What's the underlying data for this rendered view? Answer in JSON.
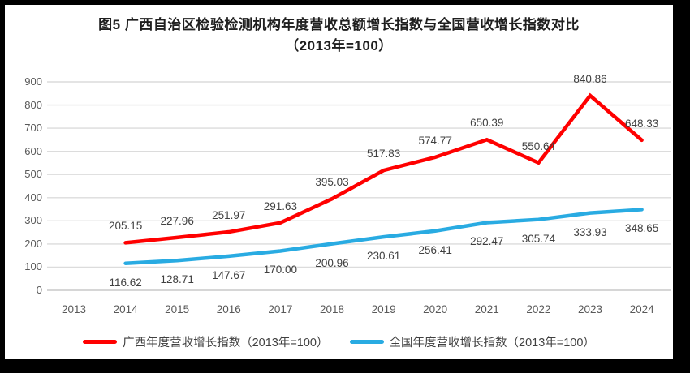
{
  "frame": {
    "border_color": "#000000",
    "background": "#ffffff"
  },
  "chart_data": {
    "type": "line",
    "title": "图5  广西自治区检验检测机构年度营收总额增长指数与全国营收增长指数对比（2013年=100）",
    "categories": [
      "2013",
      "2014",
      "2015",
      "2016",
      "2017",
      "2018",
      "2019",
      "2020",
      "2021",
      "2022",
      "2023",
      "2024"
    ],
    "series": [
      {
        "name": "广西年度营收增长指数（2013年=100）",
        "color": "#ff0000",
        "x": [
          "2014",
          "2015",
          "2016",
          "2017",
          "2018",
          "2019",
          "2020",
          "2021",
          "2022",
          "2023",
          "2024"
        ],
        "values": [
          205.15,
          227.96,
          251.97,
          291.63,
          395.03,
          517.83,
          574.77,
          650.39,
          550.64,
          840.86,
          648.33
        ],
        "labels": [
          "205.15",
          "227.96",
          "251.97",
          "291.63",
          "395.03",
          "517.83",
          "574.77",
          "650.39",
          "550.64",
          "840.86",
          "648.33"
        ],
        "label_position": "above"
      },
      {
        "name": "全国年度营收增长指数（2013年=100）",
        "color": "#29abe2",
        "x": [
          "2014",
          "2015",
          "2016",
          "2017",
          "2018",
          "2019",
          "2020",
          "2021",
          "2022",
          "2023",
          "2024"
        ],
        "values": [
          116.62,
          128.71,
          147.67,
          170.0,
          200.96,
          230.61,
          256.41,
          292.47,
          305.74,
          333.93,
          348.65
        ],
        "labels": [
          "116.62",
          "128.71",
          "147.67",
          "170.00",
          "200.96",
          "230.61",
          "256.41",
          "292.47",
          "305.74",
          "333.93",
          "348.65"
        ],
        "label_position": "below"
      }
    ],
    "ylim": [
      0,
      900
    ],
    "ytick_step": 100,
    "xlabel": "",
    "ylabel": "",
    "grid": true,
    "legend_position": "bottom"
  },
  "colors": {
    "grid_line": "#dcdcdc",
    "baseline": "#c8c8c8",
    "axis_text": "#595959",
    "data_label_text": "#404040",
    "title_text": "#1f1f1f"
  }
}
